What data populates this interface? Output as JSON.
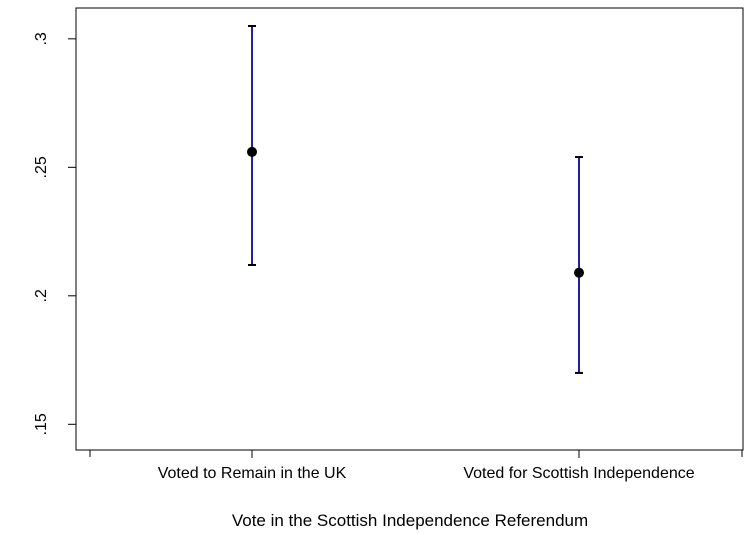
{
  "chart_data": {
    "type": "errorbar",
    "title": "",
    "xlabel": "Vote in the Scottish Independence Referendum",
    "ylabel": "",
    "categories": [
      "Voted to Remain in the UK",
      "Voted for Scottish Independence"
    ],
    "series": [
      {
        "values": [
          0.256,
          0.209
        ],
        "lower": [
          0.212,
          0.17
        ],
        "upper": [
          0.305,
          0.254
        ]
      }
    ],
    "yticks": [
      0.15,
      0.2,
      0.25,
      0.3
    ],
    "ytick_labels": [
      ".15",
      ".2",
      ".25",
      ".3"
    ],
    "ylim": [
      0.14,
      0.312
    ],
    "grid": false,
    "colors": {
      "interval_line": "#1f1fa8",
      "caps": "#000000",
      "points": "#000000",
      "axes": "#000000"
    }
  }
}
